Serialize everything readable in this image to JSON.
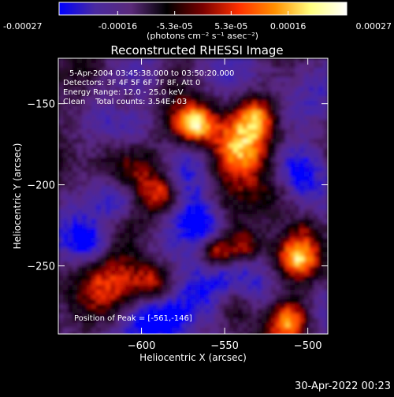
{
  "colorbar": {
    "stops": [
      "#0000ff",
      "#4a2aa0",
      "#5a2a7a",
      "#000000",
      "#7a0000",
      "#ff3000",
      "#ff9000",
      "#ffff80",
      "#ffffff"
    ],
    "ticks": [
      {
        "value": -0.00027,
        "label": "-0.00027"
      },
      {
        "value": -0.00016,
        "label": "-0.00016"
      },
      {
        "value": -5.3e-05,
        "label": "-5.3e-05"
      },
      {
        "value": 5.3e-05,
        "label": "5.3e-05"
      },
      {
        "value": 0.00016,
        "label": "0.00016"
      },
      {
        "value": 0.00027,
        "label": "0.00027"
      }
    ],
    "range": [
      -0.00027,
      0.00027
    ],
    "units": "(photons cm⁻² s⁻¹ asec⁻²)"
  },
  "title": "Reconstructed RHESSI Image",
  "info": {
    "time_range": "5-Apr-2004 03:45:38.000 to 03:50:20.000",
    "detectors": "Detectors: 3F 4F 5F 6F 7F 8F, Att 0",
    "energy": "Energy Range: 12.0 - 25.0 keV",
    "clean": "Clean    Total counts: 3.54E+03"
  },
  "peak_label": "Position of Peak = [-561,-146]",
  "axes": {
    "xlabel": "Heliocentric X (arcsec)",
    "ylabel": "Heliocentric Y (arcsec)",
    "xlim": [
      -650,
      -488
    ],
    "ylim": [
      -292,
      -122
    ],
    "xticks": [
      {
        "value": -600,
        "label": "−600"
      },
      {
        "value": -550,
        "label": "−550"
      },
      {
        "value": -500,
        "label": "−500"
      }
    ],
    "yticks": [
      {
        "value": -150,
        "label": "−150"
      },
      {
        "value": -200,
        "label": "−200"
      },
      {
        "value": -250,
        "label": "−250"
      }
    ]
  },
  "timestamp": "30-Apr-2022 00:23"
}
